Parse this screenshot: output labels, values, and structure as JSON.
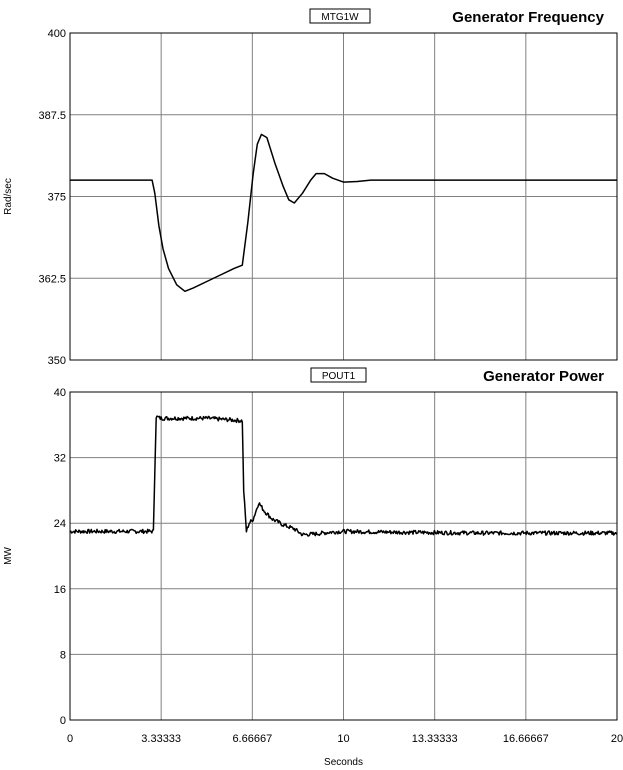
{
  "chart_data": [
    {
      "type": "line",
      "title": "Generator Frequency",
      "ylabel": "Rad/sec",
      "xlabel": "",
      "ylim": [
        350,
        400
      ],
      "xlim": [
        0,
        20
      ],
      "yticks": [
        "350",
        "362.5",
        "375",
        "387.5",
        "400"
      ],
      "xticks": [],
      "grid": true,
      "legend_placement": "top-center",
      "series": [
        {
          "name": "MTG1W",
          "x": [
            0,
            3.0,
            3.1,
            3.25,
            3.4,
            3.6,
            3.9,
            4.2,
            4.5,
            5.0,
            5.5,
            6.0,
            6.3,
            6.5,
            6.7,
            6.85,
            7.0,
            7.2,
            7.5,
            7.8,
            8.0,
            8.2,
            8.5,
            8.8,
            9.0,
            9.3,
            9.6,
            10.0,
            10.5,
            11.0,
            11.5,
            12.0,
            20.0
          ],
          "values": [
            377.5,
            377.5,
            375.5,
            370.5,
            367.0,
            364.0,
            361.5,
            360.5,
            361.0,
            362.0,
            363.0,
            364.0,
            364.5,
            371.0,
            378.5,
            383.0,
            384.5,
            384.0,
            380.0,
            376.5,
            374.5,
            374.0,
            375.5,
            377.5,
            378.5,
            378.5,
            377.8,
            377.2,
            377.3,
            377.5,
            377.5,
            377.5,
            377.5
          ]
        }
      ]
    },
    {
      "type": "line",
      "title": "Generator Power",
      "ylabel": "MW",
      "xlabel": "Seconds",
      "ylim": [
        0,
        40
      ],
      "xlim": [
        0,
        20
      ],
      "yticks": [
        "0",
        "8",
        "16",
        "24",
        "32",
        "40"
      ],
      "xticks": [
        "0",
        "3.33333",
        "6.66667",
        "10",
        "13.33333",
        "16.66667",
        "20"
      ],
      "grid": true,
      "legend_placement": "top-center",
      "series": [
        {
          "name": "POUT1",
          "x": [
            0,
            3.05,
            3.15,
            3.3,
            5.0,
            6.3,
            6.35,
            6.45,
            6.55,
            6.7,
            6.9,
            7.1,
            7.4,
            7.8,
            8.2,
            8.5,
            9.0,
            9.5,
            10.0,
            12.0,
            15.0,
            18.0,
            20.0
          ],
          "values": [
            23.0,
            23.0,
            37.0,
            36.8,
            36.8,
            36.5,
            28.0,
            23.0,
            24.0,
            24.5,
            26.5,
            25.5,
            24.5,
            23.8,
            23.3,
            22.6,
            22.7,
            22.9,
            23.0,
            22.9,
            22.8,
            22.8,
            22.8
          ]
        }
      ]
    }
  ]
}
